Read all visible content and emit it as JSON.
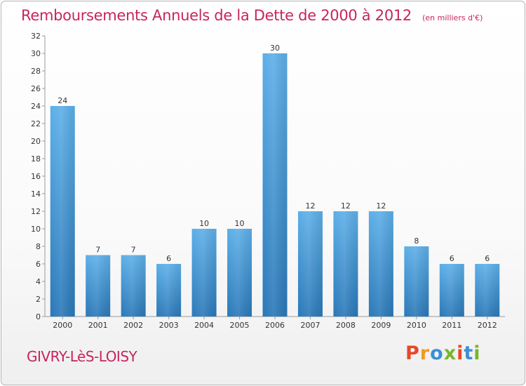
{
  "page": {
    "title": "Remboursements Annuels de la Dette de 2000 à 2012",
    "subtitle": "(en milliers d'€)",
    "commune": "GIVRY-LèS-LOISY",
    "logo_letters": [
      "P",
      "r",
      "o",
      "x",
      "i",
      "t",
      "i"
    ],
    "colors": {
      "title": "#c8245f",
      "bar_top": "#5dafe8",
      "bar_bottom": "#2a78b8",
      "logo": [
        "#e8462a",
        "#f29a1f",
        "#3a8fd6",
        "#77b62b",
        "#e8462a",
        "#3a8fd6",
        "#77b62b"
      ]
    }
  },
  "chart_data": {
    "type": "bar",
    "title": "Remboursements Annuels de la Dette de 2000 à 2012",
    "subtitle": "(en milliers d'€)",
    "categories": [
      "2000",
      "2001",
      "2002",
      "2003",
      "2004",
      "2005",
      "2006",
      "2007",
      "2008",
      "2009",
      "2010",
      "2011",
      "2012"
    ],
    "values": [
      24,
      7,
      7,
      6,
      10,
      10,
      30,
      12,
      12,
      12,
      8,
      6,
      6
    ],
    "ylim": [
      0,
      32
    ],
    "yticks": [
      0,
      2,
      4,
      6,
      8,
      10,
      12,
      14,
      16,
      18,
      20,
      22,
      24,
      26,
      28,
      30,
      32
    ],
    "grid": false,
    "legend": "none"
  }
}
